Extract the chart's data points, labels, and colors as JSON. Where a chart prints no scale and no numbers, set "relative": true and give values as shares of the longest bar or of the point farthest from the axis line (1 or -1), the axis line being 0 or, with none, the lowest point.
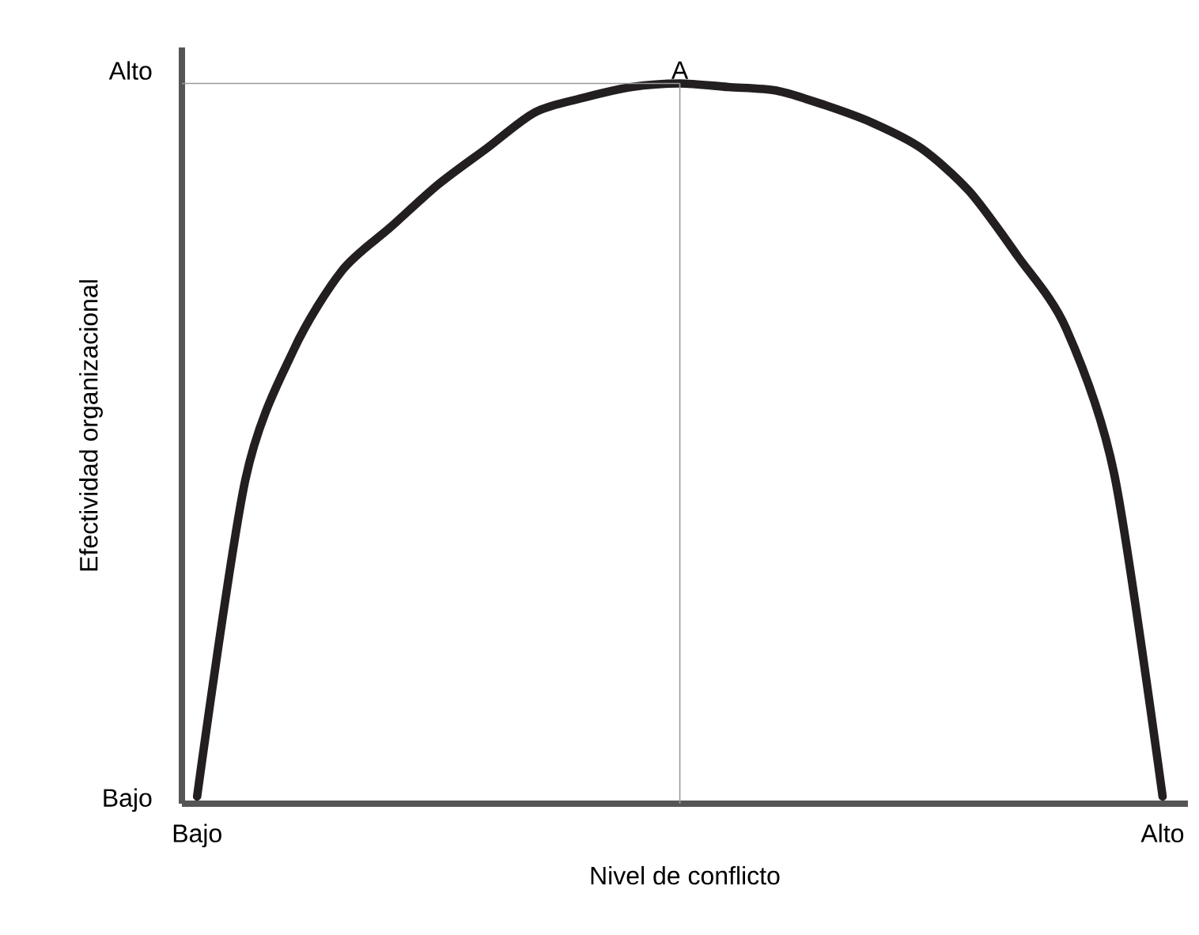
{
  "chart_data": {
    "type": "line",
    "relative": true,
    "xlabel": "Nivel de conflicto",
    "ylabel": "Efectividad organizacional",
    "categories": [
      "Bajo",
      null,
      null,
      null,
      null,
      null,
      null,
      null,
      null,
      null,
      null,
      null,
      null,
      null,
      null,
      null,
      null,
      null,
      null,
      null,
      "Alto"
    ],
    "series": [
      {
        "color": "#231f20",
        "values": [
          0.01,
          0.45,
          0.63,
          0.74,
          0.8,
          0.86,
          0.91,
          0.96,
          0.98,
          0.995,
          1,
          0.995,
          0.99,
          0.97,
          0.945,
          0.91,
          0.85,
          0.76,
          0.66,
          0.457,
          0.01
        ]
      }
    ],
    "annotations": [
      "Bajo",
      "Alto",
      {
        "text": "A",
        "y": 1
      }
    ]
  }
}
